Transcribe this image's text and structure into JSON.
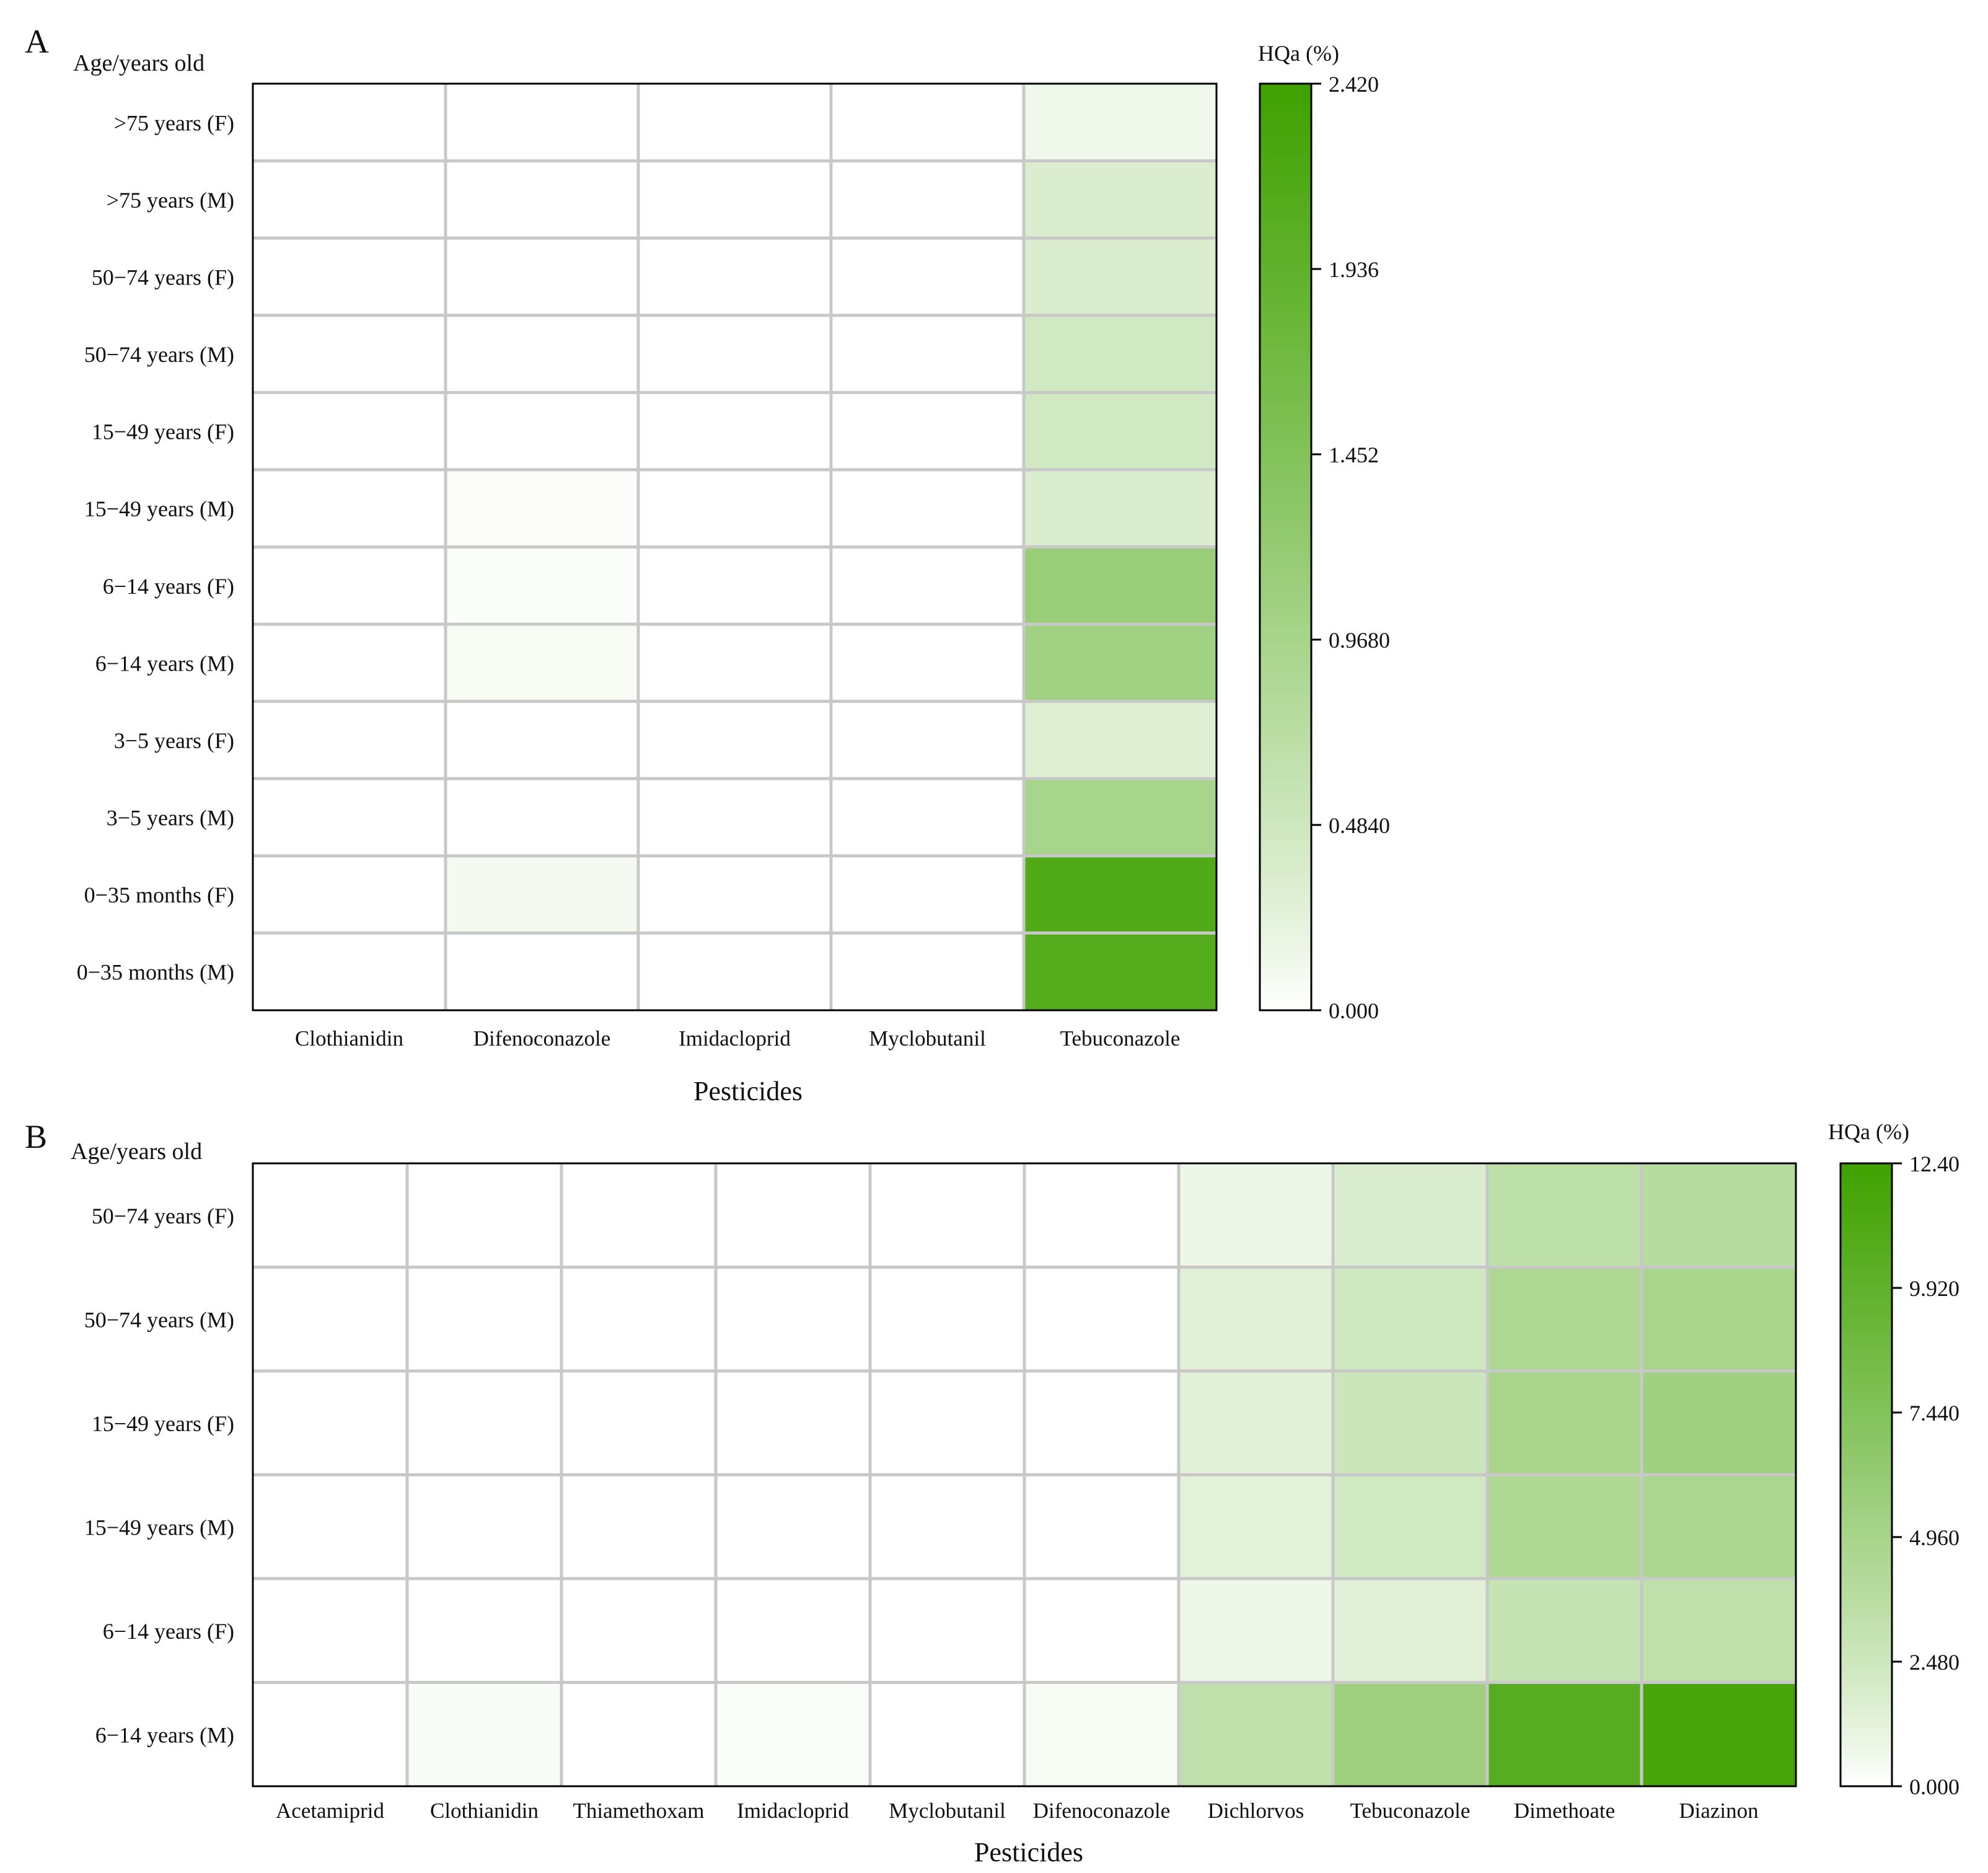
{
  "colors": {
    "low": "#ffffff",
    "high": "#3fa100",
    "grid": "#c8c8c8",
    "frame": "#000000"
  },
  "chart_data": [
    {
      "type": "heatmap",
      "panel_label": "A",
      "ylabel": "Age/years old",
      "xlabel": "Pesticides",
      "colorbar_title": "HQa (%)",
      "colorbar_ticks": [
        "0.000",
        "0.4840",
        "0.9680",
        "1.452",
        "1.936",
        "2.420"
      ],
      "vmin": 0,
      "vmax": 2.42,
      "columns": [
        "Clothianidin",
        "Difenoconazole",
        "Imidacloprid",
        "Myclobutanil",
        "Tebuconazole"
      ],
      "rows": [
        ">75 years (F)",
        ">75 years (M)",
        "50−74 years (F)",
        "50−74 years (M)",
        "15−49 years (F)",
        "15−49 years (M)",
        "6−14 years (F)",
        "6−14 years (M)",
        "3−5 years (F)",
        "3−5 years (M)",
        "0−35 months (F)",
        "0−35 months (M)"
      ],
      "values": [
        [
          0.0,
          0.0,
          0.0,
          0.0,
          0.12
        ],
        [
          0.0,
          0.0,
          0.0,
          0.0,
          0.35
        ],
        [
          0.0,
          0.0,
          0.0,
          0.0,
          0.35
        ],
        [
          0.0,
          0.0,
          0.0,
          0.0,
          0.45
        ],
        [
          0.0,
          0.0,
          0.0,
          0.0,
          0.45
        ],
        [
          0.0,
          0.02,
          0.0,
          0.0,
          0.35
        ],
        [
          0.0,
          0.03,
          0.0,
          0.0,
          1.15
        ],
        [
          0.0,
          0.06,
          0.0,
          0.0,
          1.05
        ],
        [
          0.0,
          0.0,
          0.0,
          0.0,
          0.3
        ],
        [
          0.0,
          0.0,
          0.0,
          0.0,
          0.95
        ],
        [
          0.0,
          0.08,
          0.0,
          0.0,
          2.15
        ],
        [
          0.0,
          0.0,
          0.0,
          0.0,
          2.1
        ]
      ]
    },
    {
      "type": "heatmap",
      "panel_label": "B",
      "ylabel": "Age/years old",
      "xlabel": "Pesticides",
      "colorbar_title": "HQa (%)",
      "colorbar_ticks": [
        "0.000",
        "2.480",
        "4.960",
        "7.440",
        "9.920",
        "12.40"
      ],
      "vmin": 0,
      "vmax": 12.4,
      "columns": [
        "Acetamiprid",
        "Clothianidin",
        "Thiamethoxam",
        "Imidacloprid",
        "Myclobutanil",
        "Difenoconazole",
        "Dichlorvos",
        "Tebuconazole",
        "Dimethoate",
        "Diazinon"
      ],
      "rows": [
        "50−74 years (F)",
        "50−74 years (M)",
        "15−49 years (F)",
        "15−49 years (M)",
        "6−14 years (F)",
        "6−14 years (M)"
      ],
      "values": [
        [
          0.0,
          0.0,
          0.0,
          0.0,
          0.0,
          0.0,
          0.8,
          1.8,
          3.5,
          3.9
        ],
        [
          0.0,
          0.0,
          0.0,
          0.0,
          0.0,
          0.0,
          1.4,
          2.4,
          4.5,
          4.9
        ],
        [
          0.0,
          0.0,
          0.0,
          0.0,
          0.0,
          0.0,
          1.4,
          2.6,
          4.9,
          5.4
        ],
        [
          0.0,
          0.0,
          0.0,
          0.0,
          0.0,
          0.0,
          1.3,
          2.3,
          4.4,
          4.7
        ],
        [
          0.0,
          0.0,
          0.0,
          0.0,
          0.0,
          0.0,
          0.7,
          1.4,
          3.0,
          3.4
        ],
        [
          0.0,
          0.25,
          0.0,
          0.2,
          0.0,
          0.3,
          3.4,
          5.5,
          10.6,
          11.8
        ]
      ]
    }
  ]
}
